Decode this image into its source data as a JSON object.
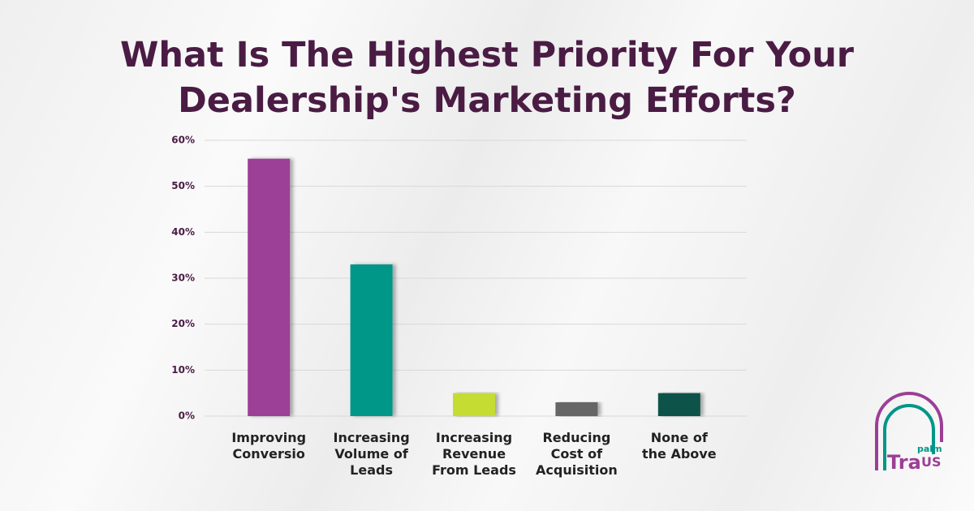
{
  "chart_data": {
    "type": "bar",
    "title": "What Is The Highest Priority For Your\nDealership's Marketing Efforts?",
    "categories": [
      "Improving\nConversio",
      "Increasing\nVolume of\nLeads",
      "Increasing\nRevenue\nFrom Leads",
      "Reducing\nCost of\nAcquisition",
      "None of\nthe Above"
    ],
    "values": [
      56,
      33,
      5,
      3,
      5
    ],
    "colors": [
      "#9b3f96",
      "#009688",
      "#c5dc32",
      "#666666",
      "#0e5248"
    ],
    "ylim": [
      0,
      60
    ],
    "yticks": [
      {
        "value": 0,
        "label": "0%"
      },
      {
        "value": 10,
        "label": "10%"
      },
      {
        "value": 20,
        "label": "20%"
      },
      {
        "value": 30,
        "label": "30%"
      },
      {
        "value": 40,
        "label": "40%"
      },
      {
        "value": 50,
        "label": "50%"
      },
      {
        "value": 60,
        "label": "60%"
      }
    ],
    "grid": true
  },
  "logo": {
    "small": "palm",
    "main": "Tra",
    "suffix": "US"
  }
}
